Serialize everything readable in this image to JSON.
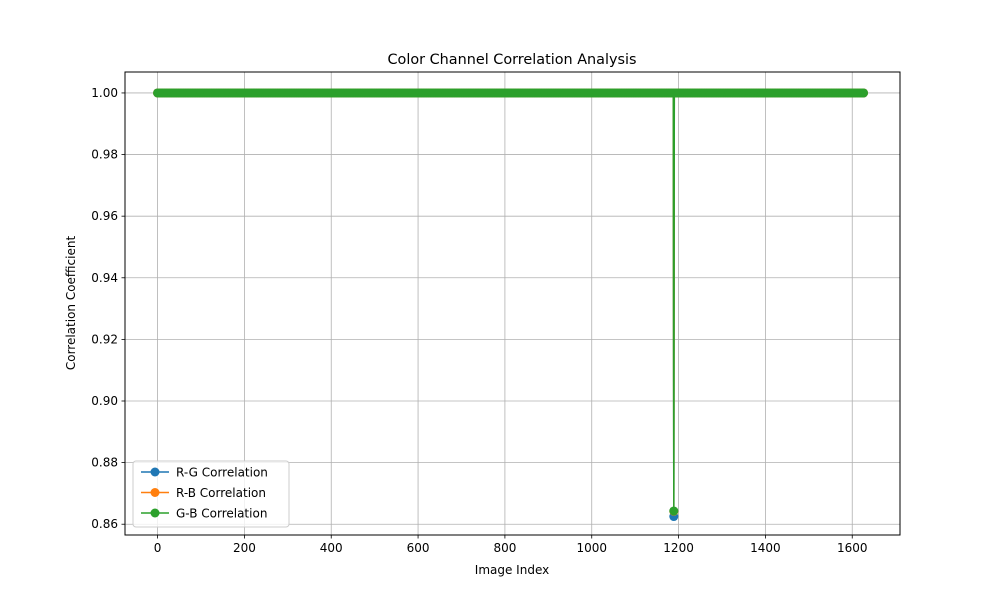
{
  "chart_data": {
    "type": "line",
    "title": "Color Channel Correlation Analysis",
    "xlabel": "Image Index",
    "ylabel": "Correlation Coefficient",
    "xlim": [
      -75,
      1710
    ],
    "ylim": [
      0.8565,
      1.0068
    ],
    "xticks": [
      0,
      200,
      400,
      600,
      800,
      1000,
      1200,
      1400,
      1600
    ],
    "xtick_labels": [
      "0",
      "200",
      "400",
      "600",
      "800",
      "1000",
      "1200",
      "1400",
      "1600"
    ],
    "yticks": [
      0.86,
      0.88,
      0.9,
      0.92,
      0.94,
      0.96,
      0.98,
      1.0
    ],
    "ytick_labels": [
      "0.86",
      "0.88",
      "0.90",
      "0.92",
      "0.94",
      "0.96",
      "0.98",
      "1.00"
    ],
    "grid": true,
    "legend_position": "lower-left",
    "marker": "circle",
    "n_points": 1627,
    "series": [
      {
        "name": "R-G Correlation",
        "color": "#1f77b4",
        "baseline": 1.0,
        "outliers": [
          {
            "x": 1189,
            "y": 0.8625
          }
        ]
      },
      {
        "name": "R-B Correlation",
        "color": "#ff7f0e",
        "baseline": 1.0,
        "outliers": [
          {
            "x": 1189,
            "y": 0.8642
          }
        ]
      },
      {
        "name": "G-B Correlation",
        "color": "#2ca02c",
        "baseline": 1.0,
        "outliers": [
          {
            "x": 1189,
            "y": 0.8643
          }
        ]
      }
    ]
  }
}
